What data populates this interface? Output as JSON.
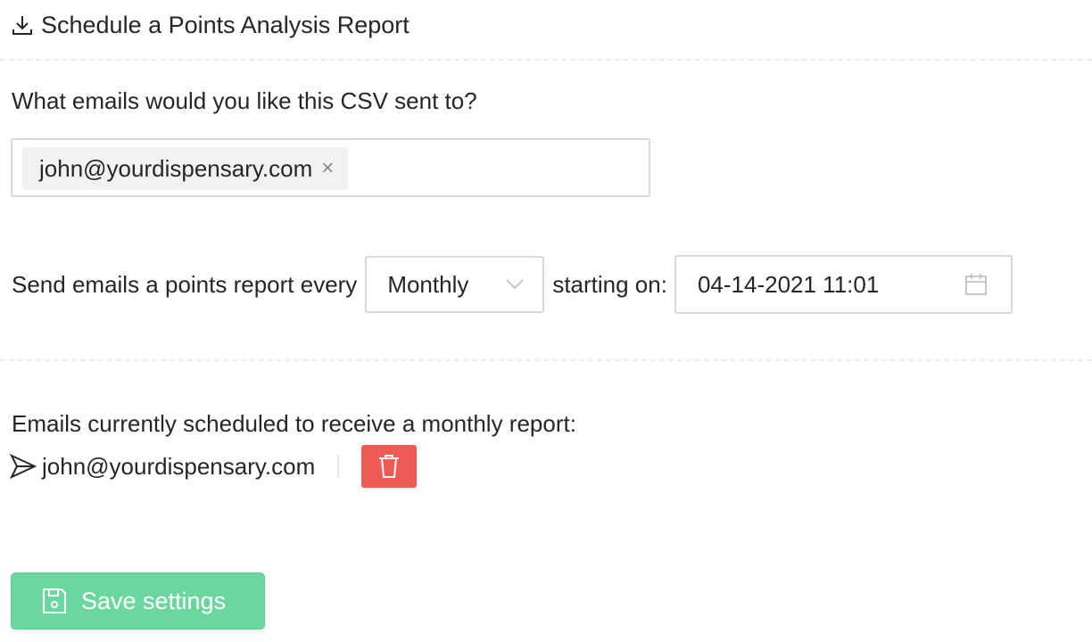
{
  "header": {
    "title": "Schedule a Points Analysis Report",
    "icon": "download-icon"
  },
  "recipients": {
    "label": "What emails would you like this CSV sent to?",
    "tags": [
      {
        "value": "john@yourdispensary.com",
        "remove": "×"
      }
    ]
  },
  "schedule": {
    "prefix": "Send emails a points report every",
    "frequency": "Monthly",
    "starting_label": "starting on:",
    "start_date": "04-14-2021 11:01"
  },
  "scheduled": {
    "label": "Emails currently scheduled to receive a monthly report:",
    "emails": [
      "john@yourdispensary.com"
    ]
  },
  "save": {
    "label": "Save settings"
  },
  "colors": {
    "delete": "#ef5c58",
    "save": "#6cd69f"
  }
}
